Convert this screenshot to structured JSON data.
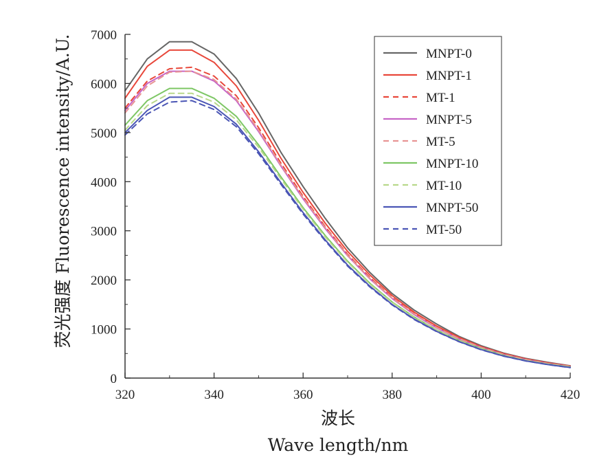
{
  "chart_data": {
    "type": "line",
    "xlabel_cn": "波长",
    "xlabel_en": "Wave length/nm",
    "ylabel": "荧光强度 Fluorescence intensity/A.U.",
    "xlim": [
      320,
      420
    ],
    "ylim": [
      0,
      7000
    ],
    "xticks": [
      320,
      340,
      360,
      380,
      400,
      420
    ],
    "yticks": [
      0,
      1000,
      2000,
      3000,
      4000,
      5000,
      6000,
      7000
    ],
    "grid": false,
    "legend_position": "top-right",
    "x": [
      320,
      325,
      330,
      335,
      340,
      345,
      350,
      355,
      360,
      365,
      370,
      375,
      380,
      385,
      390,
      395,
      400,
      405,
      410,
      415,
      420
    ],
    "series": [
      {
        "name": "MNPT-0",
        "color": "#666666",
        "dash": "solid",
        "values": [
          5850,
          6500,
          6850,
          6850,
          6600,
          6100,
          5400,
          4600,
          3900,
          3250,
          2650,
          2150,
          1720,
          1380,
          1100,
          850,
          660,
          510,
          400,
          320,
          250
        ]
      },
      {
        "name": "MNPT-1",
        "color": "#e8473a",
        "dash": "solid",
        "values": [
          5700,
          6350,
          6680,
          6680,
          6430,
          5950,
          5250,
          4480,
          3780,
          3150,
          2580,
          2100,
          1680,
          1340,
          1060,
          830,
          640,
          500,
          390,
          310,
          245
        ]
      },
      {
        "name": "MT-1",
        "color": "#e8473a",
        "dash": "dash",
        "values": [
          5500,
          6050,
          6300,
          6330,
          6150,
          5750,
          5100,
          4380,
          3700,
          3080,
          2520,
          2050,
          1640,
          1310,
          1040,
          810,
          630,
          490,
          380,
          300,
          240
        ]
      },
      {
        "name": "MNPT-5",
        "color": "#c665c6",
        "dash": "solid",
        "values": [
          5450,
          6000,
          6250,
          6250,
          6050,
          5650,
          5020,
          4320,
          3650,
          3040,
          2490,
          2020,
          1620,
          1290,
          1020,
          800,
          620,
          480,
          375,
          295,
          235
        ]
      },
      {
        "name": "MT-5",
        "color": "#e89494",
        "dash": "dash",
        "values": [
          5400,
          5950,
          6230,
          6250,
          6080,
          5680,
          5050,
          4340,
          3670,
          3060,
          2500,
          2030,
          1630,
          1300,
          1030,
          805,
          625,
          485,
          378,
          298,
          238
        ]
      },
      {
        "name": "MNPT-10",
        "color": "#7ec765",
        "dash": "solid",
        "values": [
          5150,
          5650,
          5900,
          5900,
          5700,
          5330,
          4750,
          4100,
          3470,
          2900,
          2380,
          1930,
          1550,
          1240,
          980,
          770,
          600,
          465,
          360,
          285,
          225
        ]
      },
      {
        "name": "MT-10",
        "color": "#b8d88a",
        "dash": "dash",
        "values": [
          5050,
          5550,
          5800,
          5800,
          5620,
          5260,
          4700,
          4060,
          3440,
          2870,
          2360,
          1915,
          1540,
          1230,
          975,
          765,
          595,
          462,
          358,
          283,
          223
        ]
      },
      {
        "name": "MNPT-50",
        "color": "#4a55b5",
        "dash": "solid",
        "values": [
          5000,
          5450,
          5720,
          5720,
          5530,
          5170,
          4610,
          3980,
          3370,
          2810,
          2300,
          1870,
          1500,
          1200,
          950,
          745,
          580,
          450,
          350,
          275,
          215
        ]
      },
      {
        "name": "MT-50",
        "color": "#4a55b5",
        "dash": "dash",
        "values": [
          4950,
          5380,
          5620,
          5650,
          5470,
          5120,
          4570,
          3950,
          3340,
          2790,
          2280,
          1855,
          1490,
          1190,
          945,
          740,
          575,
          447,
          348,
          273,
          213
        ]
      }
    ]
  }
}
